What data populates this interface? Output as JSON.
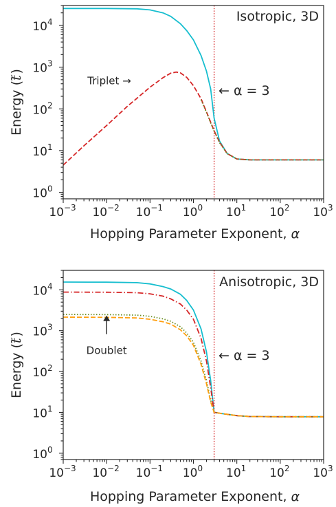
{
  "chart_data": [
    {
      "type": "line",
      "title": "Isotropic, 3D",
      "xlabel": "Hopping Parameter Exponent, α",
      "ylabel_main": "Energy (",
      "ylabel_sym": "t",
      "ylabel_tilde": "~",
      "ylabel_close": ")",
      "xscale": "log",
      "yscale": "log",
      "xlim": [
        0.001,
        1000
      ],
      "ylim": [
        0.7,
        30000
      ],
      "x_ticks": [
        {
          "base": "10",
          "exp": "−3",
          "value": 0.001
        },
        {
          "base": "10",
          "exp": "−2",
          "value": 0.01
        },
        {
          "base": "10",
          "exp": "−1",
          "value": 0.1
        },
        {
          "base": "10",
          "exp": "0",
          "value": 1
        },
        {
          "base": "10",
          "exp": "1",
          "value": 10
        },
        {
          "base": "10",
          "exp": "2",
          "value": 100
        },
        {
          "base": "10",
          "exp": "3",
          "value": 1000
        }
      ],
      "y_ticks": [
        {
          "base": "10",
          "exp": "0",
          "value": 1
        },
        {
          "base": "10",
          "exp": "1",
          "value": 10
        },
        {
          "base": "10",
          "exp": "2",
          "value": 100
        },
        {
          "base": "10",
          "exp": "3",
          "value": 1000
        },
        {
          "base": "10",
          "exp": "4",
          "value": 10000
        }
      ],
      "vline": {
        "x": 3,
        "color": "#d62728",
        "label": "← α = 3"
      },
      "annotations": [
        {
          "text": "Triplet →",
          "x": 0.03,
          "y": 470
        }
      ],
      "grid": false,
      "series": [
        {
          "color": "#17becf",
          "style": "solid",
          "points": [
            [
              0.001,
              25500
            ],
            [
              0.01,
              25500
            ],
            [
              0.05,
              25000
            ],
            [
              0.1,
              23500
            ],
            [
              0.2,
              20000
            ],
            [
              0.3,
              16500
            ],
            [
              0.5,
              11000
            ],
            [
              0.7,
              7500
            ],
            [
              1.0,
              4500
            ],
            [
              1.5,
              1900
            ],
            [
              2.0,
              800
            ],
            [
              2.5,
              300
            ],
            [
              3.0,
              60
            ],
            [
              4.0,
              17
            ],
            [
              6.0,
              8.5
            ],
            [
              10,
              6.3
            ],
            [
              20,
              6.0
            ],
            [
              100,
              6.0
            ],
            [
              1000,
              6.0
            ]
          ]
        },
        {
          "color": "#d62728",
          "style": "dashed",
          "points": [
            [
              0.001,
              4.5
            ],
            [
              0.003,
              13
            ],
            [
              0.01,
              40
            ],
            [
              0.03,
              115
            ],
            [
              0.1,
              330
            ],
            [
              0.2,
              560
            ],
            [
              0.3,
              720
            ],
            [
              0.4,
              760
            ],
            [
              0.5,
              730
            ],
            [
              0.7,
              570
            ],
            [
              1.0,
              360
            ],
            [
              1.5,
              175
            ],
            [
              2.0,
              85
            ],
            [
              2.5,
              48
            ],
            [
              3.0,
              30
            ],
            [
              4.0,
              16
            ],
            [
              6.0,
              8.5
            ],
            [
              10,
              6.3
            ],
            [
              20,
              6.0
            ],
            [
              100,
              6.0
            ],
            [
              1000,
              6.0
            ]
          ]
        },
        {
          "color": "#6b8e23",
          "style": "dotted",
          "points": [
            [
              1.5,
              165
            ],
            [
              2.0,
              82
            ],
            [
              2.5,
              46
            ],
            [
              3.0,
              29
            ],
            [
              4.0,
              15.5
            ],
            [
              6.0,
              8.4
            ],
            [
              10,
              6.3
            ],
            [
              20,
              6.0
            ],
            [
              100,
              6.0
            ],
            [
              1000,
              6.0
            ]
          ]
        }
      ]
    },
    {
      "type": "line",
      "title": "Anisotropic, 3D",
      "xlabel": "Hopping Parameter Exponent, α",
      "ylabel_main": "Energy (",
      "ylabel_sym": "t",
      "ylabel_tilde": "~",
      "ylabel_close": ")",
      "xscale": "log",
      "yscale": "log",
      "xlim": [
        0.001,
        1000
      ],
      "ylim": [
        0.7,
        30000
      ],
      "x_ticks": [
        {
          "base": "10",
          "exp": "−3",
          "value": 0.001
        },
        {
          "base": "10",
          "exp": "−2",
          "value": 0.01
        },
        {
          "base": "10",
          "exp": "−1",
          "value": 0.1
        },
        {
          "base": "10",
          "exp": "0",
          "value": 1
        },
        {
          "base": "10",
          "exp": "1",
          "value": 10
        },
        {
          "base": "10",
          "exp": "2",
          "value": 100
        },
        {
          "base": "10",
          "exp": "3",
          "value": 1000
        }
      ],
      "y_ticks": [
        {
          "base": "10",
          "exp": "0",
          "value": 1
        },
        {
          "base": "10",
          "exp": "1",
          "value": 10
        },
        {
          "base": "10",
          "exp": "2",
          "value": 100
        },
        {
          "base": "10",
          "exp": "3",
          "value": 1000
        },
        {
          "base": "10",
          "exp": "4",
          "value": 10000
        }
      ],
      "vline": {
        "x": 3,
        "color": "#d62728",
        "label": "← α = 3"
      },
      "annotations": [
        {
          "text": "Doublet",
          "x": 0.01,
          "y": 1900
        }
      ],
      "grid": false,
      "series": [
        {
          "color": "#17becf",
          "style": "solid",
          "points": [
            [
              0.001,
              15500
            ],
            [
              0.01,
              15400
            ],
            [
              0.05,
              15000
            ],
            [
              0.1,
              14000
            ],
            [
              0.2,
              12000
            ],
            [
              0.3,
              10500
            ],
            [
              0.5,
              7800
            ],
            [
              0.7,
              5500
            ],
            [
              1.0,
              3200
            ],
            [
              1.5,
              1100
            ],
            [
              2.0,
              300
            ],
            [
              2.5,
              60
            ],
            [
              3.0,
              10
            ],
            [
              5.0,
              9.2
            ],
            [
              10,
              8.3
            ],
            [
              20,
              7.9
            ],
            [
              100,
              7.8
            ],
            [
              1000,
              7.8
            ]
          ]
        },
        {
          "color": "#d62728",
          "style": "dashdot",
          "points": [
            [
              0.001,
              8800
            ],
            [
              0.01,
              8750
            ],
            [
              0.05,
              8500
            ],
            [
              0.1,
              8000
            ],
            [
              0.2,
              7000
            ],
            [
              0.3,
              6000
            ],
            [
              0.5,
              4500
            ],
            [
              0.7,
              3200
            ],
            [
              1.0,
              1900
            ],
            [
              1.5,
              650
            ],
            [
              2.0,
              180
            ],
            [
              2.5,
              40
            ],
            [
              3.0,
              10
            ],
            [
              5.0,
              9.2
            ],
            [
              10,
              8.3
            ],
            [
              20,
              7.9
            ],
            [
              100,
              7.8
            ],
            [
              1000,
              7.8
            ]
          ]
        },
        {
          "color": "#6b8e23",
          "style": "dotted",
          "points": [
            [
              0.001,
              2500
            ],
            [
              0.01,
              2480
            ],
            [
              0.05,
              2400
            ],
            [
              0.1,
              2250
            ],
            [
              0.2,
              1950
            ],
            [
              0.3,
              1700
            ],
            [
              0.5,
              1250
            ],
            [
              0.7,
              880
            ],
            [
              1.0,
              520
            ],
            [
              1.5,
              180
            ],
            [
              2.0,
              60
            ],
            [
              2.5,
              20
            ],
            [
              3.0,
              10
            ],
            [
              5.0,
              9.2
            ],
            [
              10,
              8.3
            ],
            [
              20,
              7.9
            ],
            [
              100,
              7.8
            ],
            [
              1000,
              7.8
            ]
          ]
        },
        {
          "color": "#ff9f0e",
          "style": "dashed",
          "points": [
            [
              0.001,
              2150
            ],
            [
              0.01,
              2120
            ],
            [
              0.05,
              2050
            ],
            [
              0.1,
              1900
            ],
            [
              0.2,
              1650
            ],
            [
              0.3,
              1450
            ],
            [
              0.5,
              1050
            ],
            [
              0.7,
              750
            ],
            [
              1.0,
              440
            ],
            [
              1.5,
              150
            ],
            [
              2.0,
              50
            ],
            [
              2.5,
              18
            ],
            [
              3.0,
              10
            ],
            [
              5.0,
              9.2
            ],
            [
              10,
              8.3
            ],
            [
              20,
              7.9
            ],
            [
              100,
              7.8
            ],
            [
              1000,
              7.8
            ]
          ]
        }
      ]
    }
  ]
}
